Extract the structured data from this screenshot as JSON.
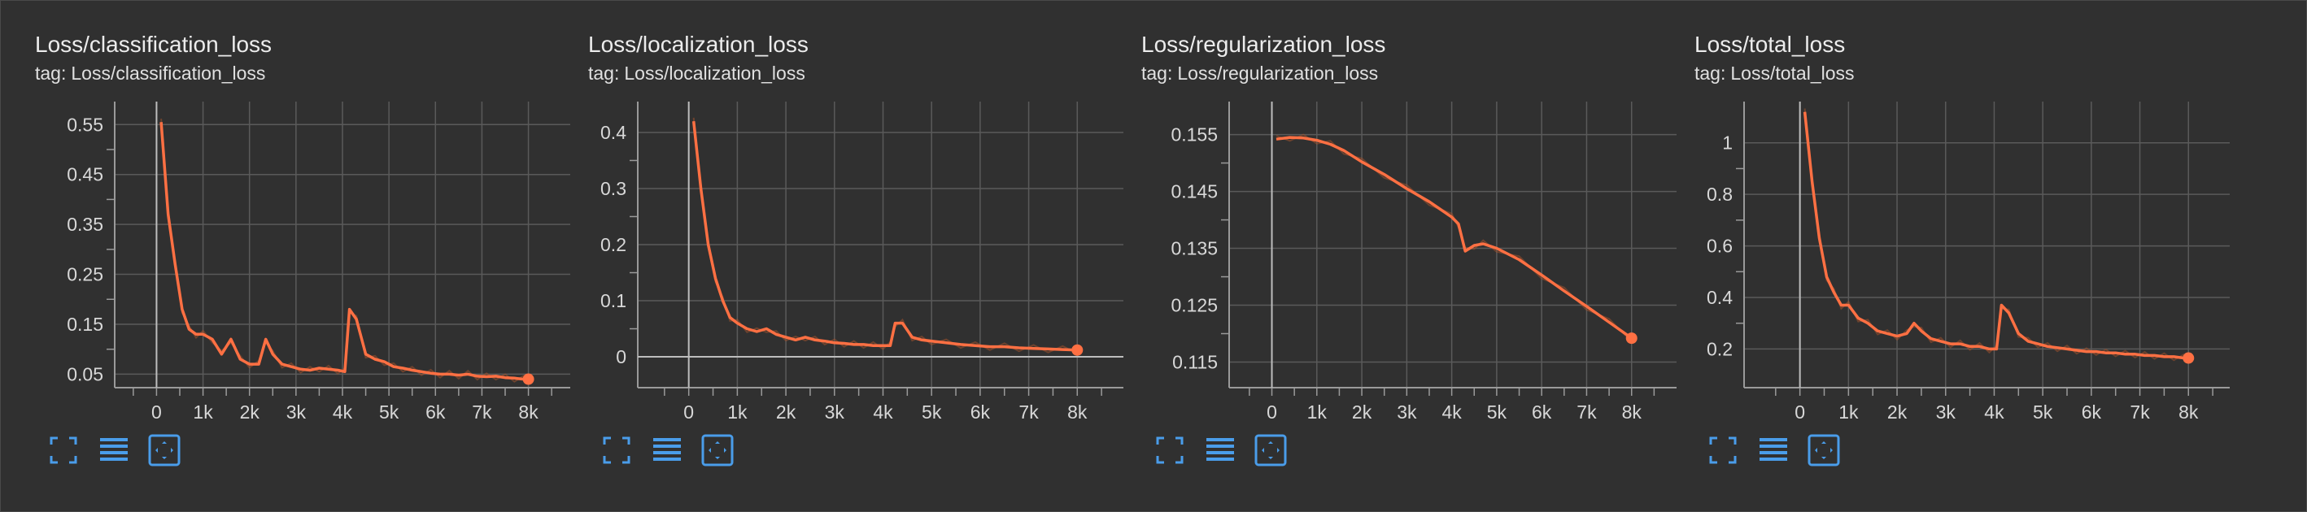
{
  "colors": {
    "background": "#303030",
    "grid": "#5a5a5a",
    "axis": "#9a9a9a",
    "line": "#ff7043",
    "raw_line": "#a0522d",
    "toolbar_icon": "#4a9dea"
  },
  "toolbar_icons": [
    "fullscreen-icon",
    "data-table-icon",
    "fit-domain-icon"
  ],
  "chart_data": [
    {
      "type": "line",
      "title": "Loss/classification_loss",
      "tag_prefix": "tag:",
      "tag": "Loss/classification_loss",
      "xlim": [
        -900,
        8900
      ],
      "ylim": [
        0.023,
        0.596
      ],
      "x_ticks": [
        0,
        1000,
        2000,
        3000,
        4000,
        5000,
        6000,
        7000,
        8000
      ],
      "x_tick_labels": [
        "0",
        "1k",
        "2k",
        "3k",
        "4k",
        "5k",
        "6k",
        "7k",
        "8k"
      ],
      "y_ticks": [
        0.05,
        0.15,
        0.25,
        0.35,
        0.45,
        0.55
      ],
      "y_tick_labels": [
        "0.05",
        "0.15",
        "0.25",
        "0.35",
        "0.45",
        "0.55"
      ],
      "grid": true,
      "series": [
        {
          "x": [
            100,
            250,
            400,
            550,
            700,
            850,
            1000,
            1200,
            1400,
            1600,
            1800,
            2000,
            2200,
            2350,
            2500,
            2700,
            2900,
            3100,
            3300,
            3500,
            3700,
            3900,
            4050,
            4150,
            4300,
            4500,
            4700,
            4900,
            5100,
            5300,
            5500,
            5700,
            5900,
            6100,
            6300,
            6500,
            6700,
            6900,
            7100,
            7300,
            7500,
            7700,
            7900,
            8000
          ],
          "values": [
            0.555,
            0.37,
            0.27,
            0.18,
            0.14,
            0.13,
            0.13,
            0.12,
            0.09,
            0.12,
            0.08,
            0.07,
            0.07,
            0.12,
            0.09,
            0.07,
            0.065,
            0.06,
            0.058,
            0.062,
            0.06,
            0.058,
            0.055,
            0.18,
            0.16,
            0.09,
            0.08,
            0.075,
            0.065,
            0.062,
            0.058,
            0.055,
            0.052,
            0.05,
            0.05,
            0.048,
            0.05,
            0.046,
            0.045,
            0.046,
            0.043,
            0.042,
            0.04,
            0.04
          ]
        }
      ]
    },
    {
      "type": "line",
      "title": "Loss/localization_loss",
      "tag_prefix": "tag:",
      "tag": "Loss/localization_loss",
      "xlim": [
        -1050,
        8950
      ],
      "ylim": [
        -0.055,
        0.455
      ],
      "x_ticks": [
        0,
        1000,
        2000,
        3000,
        4000,
        5000,
        6000,
        7000,
        8000
      ],
      "x_tick_labels": [
        "0",
        "1k",
        "2k",
        "3k",
        "4k",
        "5k",
        "6k",
        "7k",
        "8k"
      ],
      "y_ticks": [
        0,
        0.1,
        0.2,
        0.3,
        0.4
      ],
      "y_tick_labels": [
        "0",
        "0.1",
        "0.2",
        "0.3",
        "0.4"
      ],
      "grid": true,
      "series": [
        {
          "x": [
            100,
            250,
            400,
            550,
            700,
            850,
            1000,
            1200,
            1400,
            1600,
            1800,
            2000,
            2200,
            2400,
            2600,
            2800,
            3000,
            3200,
            3400,
            3600,
            3800,
            4000,
            4150,
            4250,
            4400,
            4600,
            4800,
            5000,
            5300,
            5600,
            5900,
            6200,
            6500,
            6800,
            7100,
            7400,
            7700,
            8000
          ],
          "values": [
            0.42,
            0.3,
            0.2,
            0.14,
            0.1,
            0.07,
            0.06,
            0.05,
            0.045,
            0.05,
            0.04,
            0.035,
            0.03,
            0.035,
            0.03,
            0.028,
            0.025,
            0.024,
            0.022,
            0.022,
            0.02,
            0.02,
            0.02,
            0.06,
            0.06,
            0.035,
            0.03,
            0.028,
            0.025,
            0.022,
            0.02,
            0.018,
            0.018,
            0.016,
            0.015,
            0.014,
            0.013,
            0.012
          ]
        }
      ]
    },
    {
      "type": "line",
      "title": "Loss/regularization_loss",
      "tag_prefix": "tag:",
      "tag": "Loss/regularization_loss",
      "xlim": [
        -950,
        9000
      ],
      "ylim": [
        0.1105,
        0.1608
      ],
      "x_ticks": [
        0,
        1000,
        2000,
        3000,
        4000,
        5000,
        6000,
        7000,
        8000
      ],
      "x_tick_labels": [
        "0",
        "1k",
        "2k",
        "3k",
        "4k",
        "5k",
        "6k",
        "7k",
        "8k"
      ],
      "y_ticks": [
        0.115,
        0.125,
        0.135,
        0.145,
        0.155
      ],
      "y_tick_labels": [
        "0.115",
        "0.125",
        "0.135",
        "0.145",
        "0.155"
      ],
      "grid": true,
      "series": [
        {
          "x": [
            100,
            400,
            700,
            1000,
            1300,
            1600,
            2000,
            2500,
            3000,
            3500,
            4000,
            4150,
            4300,
            4500,
            4700,
            5000,
            5500,
            6000,
            6500,
            7000,
            7500,
            8000
          ],
          "values": [
            0.1542,
            0.1545,
            0.1544,
            0.154,
            0.1533,
            0.1522,
            0.1502,
            0.148,
            0.1455,
            0.1432,
            0.1405,
            0.1393,
            0.1345,
            0.1355,
            0.1358,
            0.135,
            0.133,
            0.1303,
            0.1275,
            0.1248,
            0.122,
            0.1192
          ]
        }
      ]
    },
    {
      "type": "line",
      "title": "Loss/total_loss",
      "tag_prefix": "tag:",
      "tag": "Loss/total_loss",
      "xlim": [
        -1150,
        8850
      ],
      "ylim": [
        0.05,
        1.16
      ],
      "x_ticks": [
        0,
        1000,
        2000,
        3000,
        4000,
        5000,
        6000,
        7000,
        8000
      ],
      "x_tick_labels": [
        "0",
        "1k",
        "2k",
        "3k",
        "4k",
        "5k",
        "6k",
        "7k",
        "8k"
      ],
      "y_ticks": [
        0.2,
        0.4,
        0.6,
        0.8,
        1
      ],
      "y_tick_labels": [
        "0.2",
        "0.4",
        "0.6",
        "0.8",
        "1"
      ],
      "grid": true,
      "series": [
        {
          "x": [
            100,
            250,
            400,
            550,
            700,
            850,
            1000,
            1200,
            1400,
            1600,
            1800,
            2000,
            2200,
            2350,
            2500,
            2700,
            2900,
            3100,
            3300,
            3500,
            3700,
            3900,
            4050,
            4150,
            4300,
            4500,
            4700,
            4900,
            5100,
            5300,
            5500,
            5700,
            5900,
            6100,
            6300,
            6500,
            6700,
            6900,
            7100,
            7300,
            7500,
            7700,
            7900,
            8000
          ],
          "values": [
            1.12,
            0.85,
            0.63,
            0.48,
            0.42,
            0.37,
            0.37,
            0.32,
            0.3,
            0.27,
            0.26,
            0.25,
            0.26,
            0.3,
            0.27,
            0.24,
            0.23,
            0.22,
            0.22,
            0.21,
            0.21,
            0.2,
            0.2,
            0.37,
            0.34,
            0.26,
            0.23,
            0.22,
            0.21,
            0.205,
            0.2,
            0.195,
            0.19,
            0.19,
            0.185,
            0.185,
            0.18,
            0.18,
            0.175,
            0.175,
            0.17,
            0.17,
            0.165,
            0.165
          ]
        }
      ]
    }
  ]
}
